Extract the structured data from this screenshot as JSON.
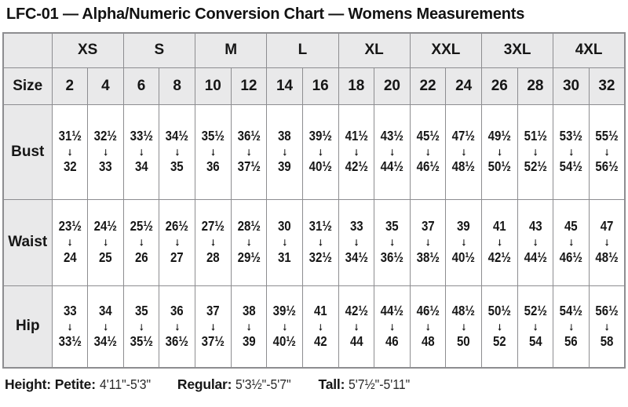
{
  "title": "LFC-01 — Alpha/Numeric Conversion Chart — Womens Measurements",
  "arrow_icon": "↓",
  "colors": {
    "header_bg": "#e9e9ea",
    "border": "#8d8d90",
    "text": "#161616",
    "cell_bg": "#ffffff"
  },
  "chart_data": {
    "type": "table",
    "title": "LFC-01 — Alpha/Numeric Conversion Chart — Womens Measurements",
    "size_label": "Size",
    "alpha_sizes": [
      "XS",
      "S",
      "M",
      "L",
      "XL",
      "XXL",
      "3XL",
      "4XL"
    ],
    "numeric_sizes": [
      "2",
      "4",
      "6",
      "8",
      "10",
      "12",
      "14",
      "16",
      "18",
      "20",
      "22",
      "24",
      "26",
      "28",
      "30",
      "32"
    ],
    "rows": [
      {
        "label": "Bust",
        "cells": [
          {
            "from": "31½",
            "to": "32"
          },
          {
            "from": "32½",
            "to": "33"
          },
          {
            "from": "33½",
            "to": "34"
          },
          {
            "from": "34½",
            "to": "35"
          },
          {
            "from": "35½",
            "to": "36"
          },
          {
            "from": "36½",
            "to": "37½"
          },
          {
            "from": "38",
            "to": "39"
          },
          {
            "from": "39½",
            "to": "40½"
          },
          {
            "from": "41½",
            "to": "42½"
          },
          {
            "from": "43½",
            "to": "44½"
          },
          {
            "from": "45½",
            "to": "46½"
          },
          {
            "from": "47½",
            "to": "48½"
          },
          {
            "from": "49½",
            "to": "50½"
          },
          {
            "from": "51½",
            "to": "52½"
          },
          {
            "from": "53½",
            "to": "54½"
          },
          {
            "from": "55½",
            "to": "56½"
          }
        ]
      },
      {
        "label": "Waist",
        "cells": [
          {
            "from": "23½",
            "to": "24"
          },
          {
            "from": "24½",
            "to": "25"
          },
          {
            "from": "25½",
            "to": "26"
          },
          {
            "from": "26½",
            "to": "27"
          },
          {
            "from": "27½",
            "to": "28"
          },
          {
            "from": "28½",
            "to": "29½"
          },
          {
            "from": "30",
            "to": "31"
          },
          {
            "from": "31½",
            "to": "32½"
          },
          {
            "from": "33",
            "to": "34½"
          },
          {
            "from": "35",
            "to": "36½"
          },
          {
            "from": "37",
            "to": "38½"
          },
          {
            "from": "39",
            "to": "40½"
          },
          {
            "from": "41",
            "to": "42½"
          },
          {
            "from": "43",
            "to": "44½"
          },
          {
            "from": "45",
            "to": "46½"
          },
          {
            "from": "47",
            "to": "48½"
          }
        ]
      },
      {
        "label": "Hip",
        "cells": [
          {
            "from": "33",
            "to": "33½"
          },
          {
            "from": "34",
            "to": "34½"
          },
          {
            "from": "35",
            "to": "35½"
          },
          {
            "from": "36",
            "to": "36½"
          },
          {
            "from": "37",
            "to": "37½"
          },
          {
            "from": "38",
            "to": "39"
          },
          {
            "from": "39½",
            "to": "40½"
          },
          {
            "from": "41",
            "to": "42"
          },
          {
            "from": "42½",
            "to": "44"
          },
          {
            "from": "44½",
            "to": "46"
          },
          {
            "from": "46½",
            "to": "48"
          },
          {
            "from": "48½",
            "to": "50"
          },
          {
            "from": "50½",
            "to": "52"
          },
          {
            "from": "52½",
            "to": "54"
          },
          {
            "from": "54½",
            "to": "56"
          },
          {
            "from": "56½",
            "to": "58"
          }
        ]
      }
    ]
  },
  "footer": {
    "height_label": "Height:",
    "entries": [
      {
        "label": "Petite:",
        "value": "4'11\"-5'3\""
      },
      {
        "label": "Regular:",
        "value": "5'3½\"-5'7\""
      },
      {
        "label": "Tall:",
        "value": "5'7½\"-5'11\""
      }
    ]
  }
}
